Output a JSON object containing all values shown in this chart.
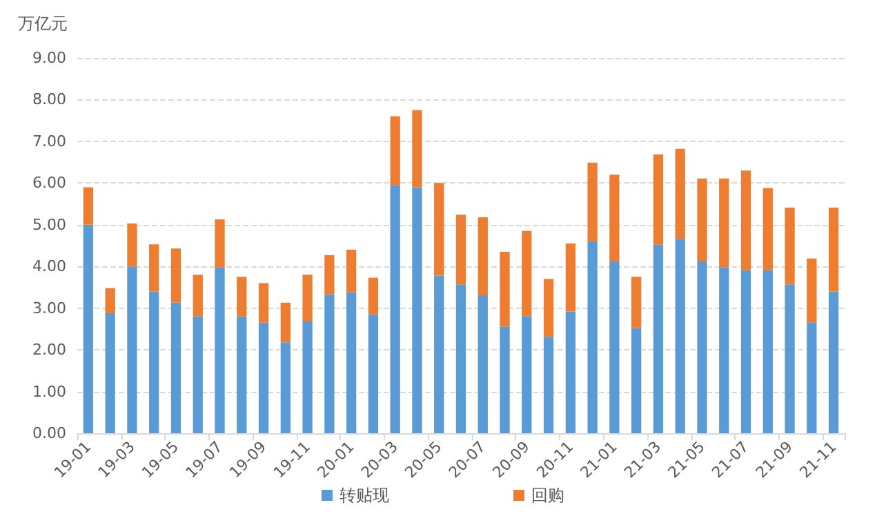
{
  "chart_data": {
    "type": "bar",
    "stacked": true,
    "ylabel": "万亿元",
    "categories": [
      "19-01",
      null,
      "19-03",
      null,
      "19-05",
      null,
      "19-07",
      null,
      "19-09",
      null,
      "19-11",
      null,
      "20-01",
      null,
      "20-03",
      null,
      "20-05",
      null,
      "20-07",
      null,
      "20-09",
      null,
      "20-11",
      null,
      "21-01",
      null,
      "21-03",
      null,
      "21-05",
      null,
      "21-07",
      null,
      "21-09",
      null,
      "21-11"
    ],
    "series": [
      {
        "name": "转贴现",
        "color": "#5b9bd5",
        "values": [
          5.0,
          2.88,
          4.0,
          3.4,
          3.13,
          2.8,
          3.98,
          2.8,
          2.65,
          2.18,
          2.68,
          3.33,
          3.38,
          2.85,
          5.95,
          5.9,
          3.78,
          3.57,
          3.31,
          2.56,
          2.81,
          2.31,
          2.92,
          4.6,
          4.12,
          2.52,
          4.52,
          4.66,
          4.12,
          3.98,
          3.91,
          3.91,
          3.57,
          2.66,
          3.4
        ]
      },
      {
        "name": "回购",
        "color": "#ed7d31",
        "values": [
          0.9,
          0.6,
          1.03,
          1.13,
          1.3,
          1.0,
          1.15,
          0.95,
          0.95,
          0.95,
          1.12,
          0.94,
          1.02,
          0.88,
          1.65,
          1.85,
          2.22,
          1.67,
          1.87,
          1.79,
          2.04,
          1.39,
          1.63,
          1.89,
          2.08,
          1.23,
          2.17,
          2.16,
          1.99,
          2.13,
          2.39,
          1.97,
          1.84,
          1.53,
          2.01
        ]
      }
    ],
    "ylim": [
      0,
      9
    ],
    "yticks": [
      {
        "value": 0,
        "label": "0.00"
      },
      {
        "value": 1,
        "label": "1.00"
      },
      {
        "value": 2,
        "label": "2.00"
      },
      {
        "value": 3,
        "label": "3.00"
      },
      {
        "value": 4,
        "label": "4.00"
      },
      {
        "value": 5,
        "label": "5.00"
      },
      {
        "value": 6,
        "label": "6.00"
      },
      {
        "value": 7,
        "label": "7.00"
      },
      {
        "value": 8,
        "label": "8.00"
      },
      {
        "value": 9,
        "label": "9.00"
      }
    ],
    "grid": "y",
    "legend": "bottom"
  }
}
